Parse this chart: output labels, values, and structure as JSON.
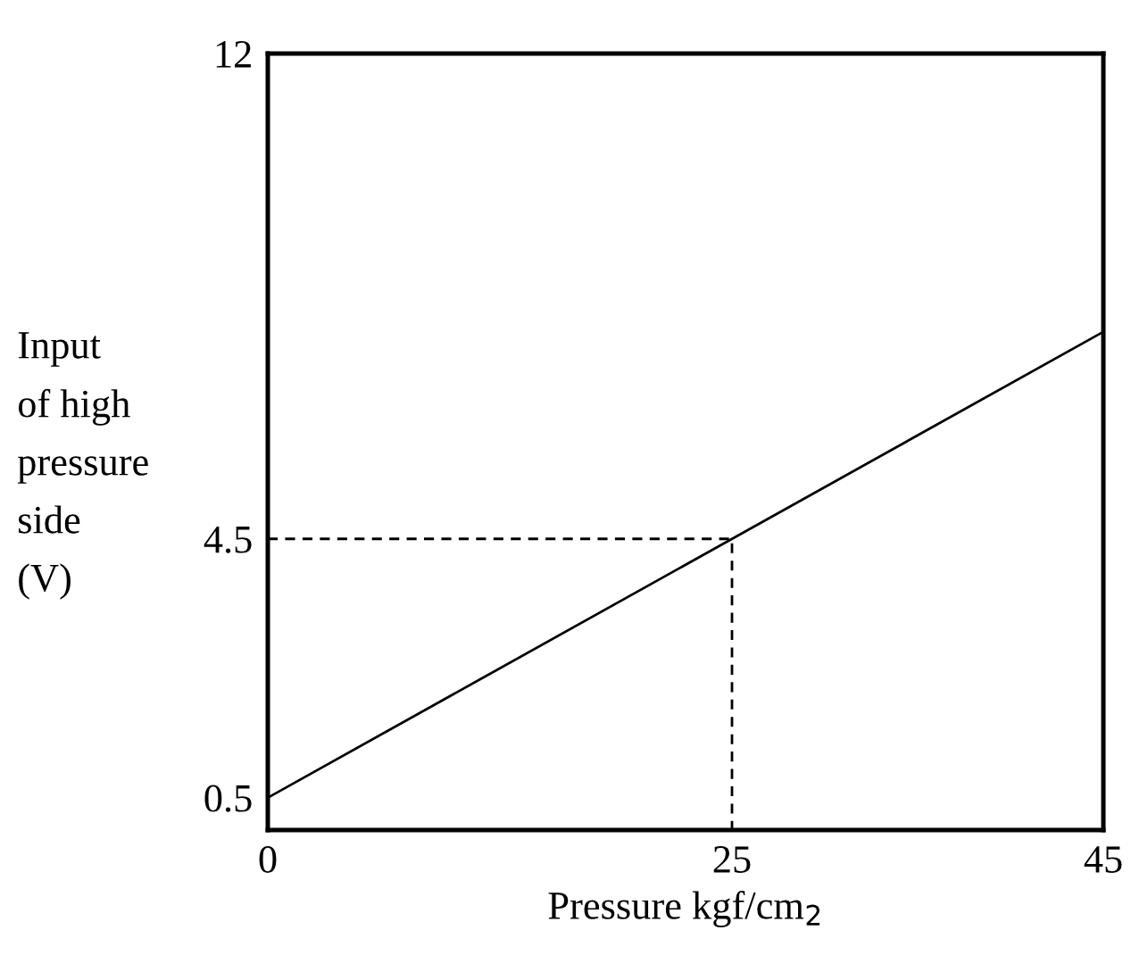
{
  "chart_data": {
    "type": "line",
    "xlabel": "Pressure kgf/cm$_{2}$",
    "ylabel": "Input\nof high\npressure\nside\n(V)",
    "xlim": [
      0,
      45
    ],
    "ylim": [
      0,
      12
    ],
    "xticks": [
      0,
      25,
      45
    ],
    "yticks": [
      0.5,
      4.5,
      12
    ],
    "grid": false,
    "series": [
      {
        "color": "#000000",
        "x": [
          0,
          45
        ],
        "values": [
          0.5,
          7.7
        ],
        "line_style": "solid"
      },
      {
        "color": "#000000",
        "x": [
          0,
          25,
          25
        ],
        "values": [
          4.5,
          4.5,
          0
        ],
        "line_style": "dashed"
      }
    ]
  }
}
